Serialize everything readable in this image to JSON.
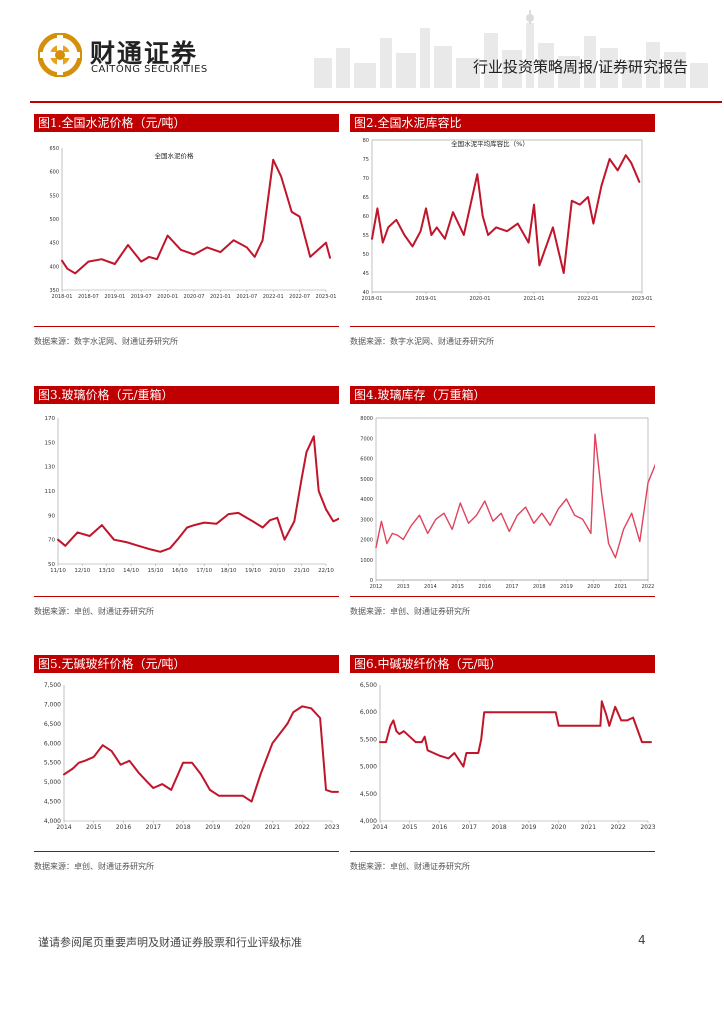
{
  "header": {
    "brand_cn": "财通证券",
    "brand_en": "CAITONG SECURITIES",
    "report_type": "行业投资策略周报/证券研究报告"
  },
  "figures": [
    {
      "title": "图1.全国水泥价格（元/吨）",
      "source": "数据来源：数字水泥网、财通证券研究所"
    },
    {
      "title": "图2.全国水泥库容比",
      "source": "数据来源：数字水泥网、财通证券研究所"
    },
    {
      "title": "图3.玻璃价格（元/重箱）",
      "source": "数据来源：卓创、财通证券研究所"
    },
    {
      "title": "图4.玻璃库存（万重箱）",
      "source": "数据来源：卓创、财通证券研究所"
    },
    {
      "title": "图5.无碱玻纤价格（元/吨）",
      "source": "数据来源：卓创、财通证券研究所"
    },
    {
      "title": "图6.中碱玻纤价格（元/吨）",
      "source": "数据来源：卓创、财通证券研究所"
    }
  ],
  "footer": {
    "disclaimer": "谨请参阅尾页重要声明及财通证券股票和行业评级标准",
    "page": "4"
  },
  "colors": {
    "accent": "#c00000",
    "line": "#c0152a",
    "line_light": "#e0435c"
  },
  "chart_data": [
    {
      "type": "line",
      "title": "全国水泥价格",
      "xticks": [
        "2018-01",
        "2018-07",
        "2019-01",
        "2019-07",
        "2020-01",
        "2020-07",
        "2021-01",
        "2021-07",
        "2022-01",
        "2022-07",
        "2023-01"
      ],
      "ylim": [
        350,
        650
      ],
      "yticks": [
        350,
        400,
        450,
        500,
        550,
        600,
        650
      ],
      "ytick_labels": [
        "350",
        "400",
        "450",
        "500",
        "550",
        "600",
        "650"
      ],
      "x": [
        0,
        0.2,
        0.5,
        1,
        1.5,
        2,
        2.5,
        3,
        3.3,
        3.6,
        4,
        4.5,
        5,
        5.5,
        6,
        6.5,
        7,
        7.3,
        7.6,
        8,
        8.3,
        8.7,
        9,
        9.4,
        9.7,
        10,
        10.15
      ],
      "values": [
        412,
        395,
        385,
        410,
        415,
        405,
        445,
        410,
        420,
        415,
        465,
        435,
        425,
        440,
        430,
        455,
        440,
        420,
        455,
        625,
        590,
        515,
        505,
        420,
        435,
        450,
        418
      ]
    },
    {
      "type": "line",
      "title": "全国水泥平均库容比（%）",
      "xticks": [
        "2018-01",
        "2019-01",
        "2020-01",
        "2021-01",
        "2022-01",
        "2023-01"
      ],
      "ylim": [
        40,
        80
      ],
      "yticks": [
        40,
        45,
        50,
        55,
        60,
        65,
        70,
        75,
        80
      ],
      "ytick_labels": [
        "40",
        "45",
        "50",
        "55",
        "60",
        "65",
        "70",
        "75",
        "80"
      ],
      "x": [
        0,
        0.1,
        0.2,
        0.3,
        0.45,
        0.6,
        0.75,
        0.9,
        1.0,
        1.1,
        1.2,
        1.35,
        1.5,
        1.7,
        1.95,
        2.05,
        2.15,
        2.3,
        2.5,
        2.7,
        2.9,
        3.0,
        3.1,
        3.2,
        3.35,
        3.55,
        3.7,
        3.85,
        4.0,
        4.1,
        4.25,
        4.4,
        4.55,
        4.7,
        4.8,
        4.95
      ],
      "values": [
        54,
        62,
        53,
        57,
        59,
        55,
        52,
        56,
        62,
        55,
        57,
        54,
        61,
        55,
        71,
        60,
        55,
        57,
        56,
        58,
        53,
        63,
        47,
        51,
        57,
        45,
        64,
        63,
        65,
        58,
        68,
        75,
        72,
        76,
        74,
        69
      ]
    },
    {
      "type": "line",
      "title": "",
      "xticks": [
        "11/10",
        "12/10",
        "13/10",
        "14/10",
        "15/10",
        "16/10",
        "17/10",
        "18/10",
        "19/10",
        "20/10",
        "21/10",
        "22/10"
      ],
      "ylim": [
        50,
        170
      ],
      "yticks": [
        50,
        70,
        90,
        110,
        130,
        150,
        170
      ],
      "ytick_labels": [
        "50",
        "70",
        "90",
        "110",
        "130",
        "150",
        "170"
      ],
      "x": [
        0,
        0.3,
        0.8,
        1.3,
        1.8,
        2.3,
        2.8,
        3.3,
        3.8,
        4.2,
        4.6,
        4.9,
        5.3,
        5.6,
        6.0,
        6.5,
        7.0,
        7.4,
        8.0,
        8.4,
        8.7,
        9.0,
        9.3,
        9.7,
        10.0,
        10.2,
        10.5,
        10.7,
        11.0,
        11.3,
        11.6
      ],
      "values": [
        70,
        65,
        76,
        73,
        82,
        70,
        68,
        65,
        62,
        60,
        63,
        70,
        80,
        82,
        84,
        83,
        91,
        92,
        85,
        80,
        86,
        88,
        70,
        85,
        120,
        142,
        155,
        110,
        95,
        85,
        88
      ]
    },
    {
      "type": "line",
      "title": "",
      "xticks": [
        "2012",
        "2013",
        "2014",
        "2015",
        "2016",
        "2017",
        "2018",
        "2019",
        "2020",
        "2021",
        "2022"
      ],
      "ylim": [
        0,
        8000
      ],
      "yticks": [
        0,
        1000,
        2000,
        3000,
        4000,
        5000,
        6000,
        7000,
        8000
      ],
      "ytick_labels": [
        "0",
        "1000",
        "2000",
        "3000",
        "4000",
        "5000",
        "6000",
        "7000",
        "8000"
      ],
      "x": [
        0,
        0.2,
        0.4,
        0.6,
        0.8,
        1.0,
        1.3,
        1.6,
        1.9,
        2.2,
        2.5,
        2.8,
        3.1,
        3.4,
        3.7,
        4.0,
        4.3,
        4.6,
        4.9,
        5.2,
        5.5,
        5.8,
        6.1,
        6.4,
        6.7,
        7.0,
        7.3,
        7.6,
        7.9,
        8.05,
        8.3,
        8.55,
        8.8,
        9.1,
        9.4,
        9.7,
        10.0,
        10.3,
        10.5,
        10.7,
        10.85
      ],
      "values": [
        1600,
        2900,
        1800,
        2300,
        2200,
        2000,
        2700,
        3200,
        2300,
        3000,
        3300,
        2500,
        3800,
        2800,
        3200,
        3900,
        2900,
        3300,
        2400,
        3200,
        3600,
        2800,
        3300,
        2700,
        3500,
        4000,
        3200,
        3000,
        2300,
        7200,
        4200,
        1800,
        1100,
        2500,
        3300,
        1900,
        4800,
        5800,
        4300,
        5100,
        5300
      ]
    },
    {
      "type": "line",
      "title": "",
      "xticks": [
        "2014",
        "2015",
        "2016",
        "2017",
        "2018",
        "2019",
        "2020",
        "2021",
        "2022",
        "2023"
      ],
      "ylim": [
        4000,
        7500
      ],
      "yticks": [
        4000,
        4500,
        5000,
        5500,
        6000,
        6500,
        7000,
        7500
      ],
      "ytick_labels": [
        "4,000",
        "4,500",
        "5,000",
        "5,500",
        "6,000",
        "6,500",
        "7,000",
        "7,500"
      ],
      "x": [
        0,
        0.3,
        0.5,
        0.7,
        1.0,
        1.3,
        1.6,
        1.9,
        2.2,
        2.5,
        2.8,
        3.0,
        3.3,
        3.6,
        4.0,
        4.3,
        4.6,
        4.9,
        5.2,
        5.5,
        6.0,
        6.3,
        6.6,
        7.0,
        7.3,
        7.5,
        7.7,
        8.0,
        8.3,
        8.6,
        8.8,
        9.0,
        9.2
      ],
      "values": [
        5200,
        5350,
        5500,
        5550,
        5650,
        5950,
        5800,
        5450,
        5550,
        5250,
        5000,
        4850,
        4950,
        4800,
        5500,
        5500,
        5200,
        4800,
        4650,
        4650,
        4650,
        4500,
        5200,
        6000,
        6300,
        6500,
        6800,
        6950,
        6900,
        6650,
        4800,
        4750,
        4750
      ]
    },
    {
      "type": "line",
      "title": "",
      "xticks": [
        "2014",
        "2015",
        "2016",
        "2017",
        "2018",
        "2019",
        "2020",
        "2021",
        "2022",
        "2023"
      ],
      "ylim": [
        4000,
        6500
      ],
      "yticks": [
        4000,
        4500,
        5000,
        5500,
        6000,
        6500
      ],
      "ytick_labels": [
        "4,000",
        "4,500",
        "5,000",
        "5,500",
        "6,000",
        "6,500"
      ],
      "x": [
        0,
        0.2,
        0.35,
        0.45,
        0.55,
        0.65,
        0.8,
        1.0,
        1.2,
        1.4,
        1.5,
        1.6,
        1.8,
        2.0,
        2.3,
        2.5,
        2.8,
        2.9,
        3.3,
        3.4,
        3.5,
        3.8,
        4.2,
        5.0,
        5.9,
        6.0,
        6.5,
        7.0,
        7.4,
        7.45,
        7.6,
        7.7,
        7.9,
        8.1,
        8.3,
        8.5,
        8.8,
        9.1
      ],
      "values": [
        5450,
        5450,
        5750,
        5850,
        5650,
        5600,
        5650,
        5550,
        5450,
        5450,
        5550,
        5300,
        5250,
        5200,
        5150,
        5250,
        5000,
        5250,
        5250,
        5500,
        6000,
        6000,
        6000,
        6000,
        6000,
        5750,
        5750,
        5750,
        5750,
        6200,
        5950,
        5750,
        6100,
        5850,
        5850,
        5900,
        5450,
        5450
      ]
    }
  ]
}
